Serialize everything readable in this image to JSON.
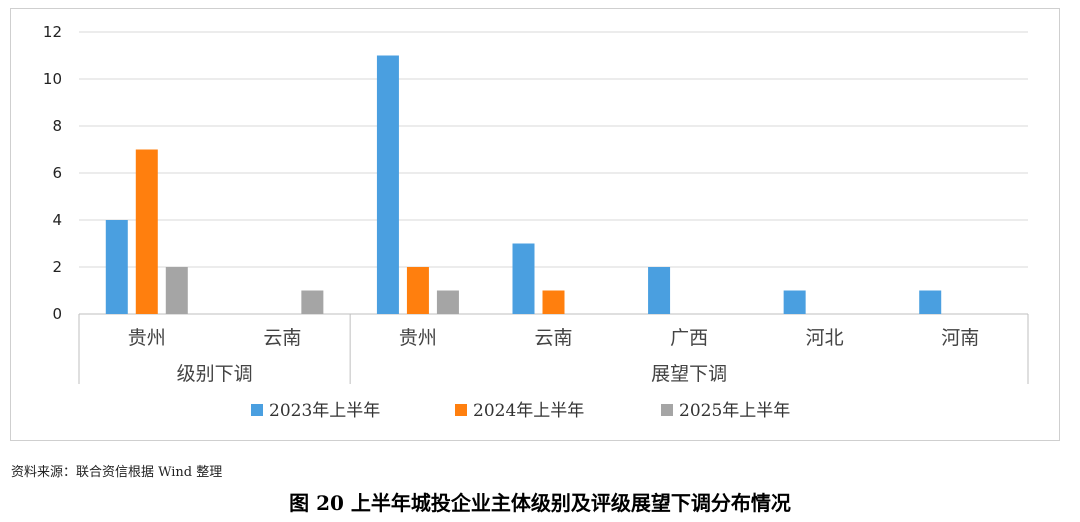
{
  "chart_data": {
    "type": "bar",
    "title": "",
    "xlabel": "",
    "ylabel": "",
    "ylim": [
      0,
      12
    ],
    "yticks": [
      "0",
      "2",
      "4",
      "6",
      "8",
      "10",
      "12"
    ],
    "grid": true,
    "legend_position": "bottom",
    "groups": [
      {
        "label": "级别下调",
        "categories": [
          "贵州",
          "云南"
        ]
      },
      {
        "label": "展望下调",
        "categories": [
          "贵州",
          "云南",
          "广西",
          "河北",
          "河南"
        ]
      }
    ],
    "series": [
      {
        "name": "2023年上半年",
        "color": "#4a9fe0",
        "values": [
          4,
          0,
          11,
          3,
          2,
          1,
          1
        ]
      },
      {
        "name": "2024年上半年",
        "color": "#ff7f0e",
        "values": [
          7,
          0,
          2,
          1,
          0,
          0,
          0
        ]
      },
      {
        "name": "2025年上半年",
        "color": "#a5a5a5",
        "values": [
          2,
          1,
          1,
          0,
          0,
          0,
          0
        ]
      }
    ]
  },
  "source_note": "资料来源：联合资信根据 Wind 整理",
  "figure_caption": "图 20    上半年城投企业主体级别及评级展望下调分布情况"
}
